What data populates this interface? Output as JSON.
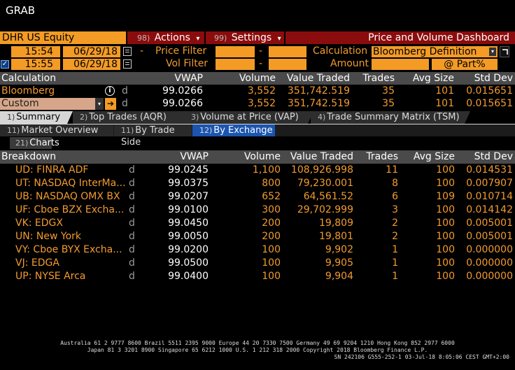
{
  "window_title": "GRAB",
  "security": "DHR US Equity",
  "menu": {
    "actions": {
      "num": "98)",
      "label": "Actions",
      "arrow": "▾"
    },
    "settings": {
      "num": "99)",
      "label": "Settings",
      "arrow": "▾"
    },
    "dashboard_title": "Price and Volume Dashboard"
  },
  "filters": {
    "start_time": "15:54",
    "start_date": "06/29/18",
    "end_time": "15:55",
    "end_date": "06/29/18",
    "dash": "-",
    "price_filter_label": "Price Filter",
    "vol_filter_label": "Vol Filter",
    "calculation_label": "Calculation",
    "calculation_value": "Bloomberg Definition",
    "amount_label": "Amount",
    "part_label": "@ Part%"
  },
  "calc_table": {
    "headers": [
      "Calculation",
      "VWAP",
      "Volume",
      "Value Traded",
      "Trades",
      "Avg Size",
      "Std Dev"
    ],
    "rows": [
      {
        "name": "Bloomberg",
        "info": "i",
        "flag": "d",
        "vwap": "99.0266",
        "volume": "3,552",
        "value": "351,742.519",
        "trades": "35",
        "avg": "101",
        "std": "0.015651"
      },
      {
        "name": "Custom",
        "info": "",
        "flag": "d",
        "vwap": "99.0266",
        "volume": "3,552",
        "value": "351,742.519",
        "trades": "35",
        "avg": "101",
        "std": "0.015651"
      }
    ]
  },
  "tabs": [
    {
      "num": "1)",
      "label": "Summary"
    },
    {
      "num": "2)",
      "label": "Top Trades (AQR)"
    },
    {
      "num": "3)",
      "label": "Volume at Price (VAP)"
    },
    {
      "num": "4)",
      "label": "Trade Summary Matrix (TSM)"
    }
  ],
  "subtabs": [
    {
      "num": "11)",
      "label": "Market Overview"
    },
    {
      "num": "11)",
      "label": "By Trade Side"
    },
    {
      "num": "12)",
      "label": "By Exchange"
    }
  ],
  "charts_button": {
    "num": "21)",
    "label": "Charts"
  },
  "breakdown": {
    "headers": [
      "Breakdown",
      "VWAP",
      "Volume",
      "Value Traded",
      "Trades",
      "Avg Size",
      "Std Dev"
    ],
    "rows": [
      {
        "name": "UD: FINRA ADF",
        "flag": "d",
        "vwap": "99.0245",
        "volume": "1,100",
        "value": "108,926.998",
        "trades": "11",
        "avg": "100",
        "std": "0.014531"
      },
      {
        "name": "UT: NASDAQ InterMa...",
        "flag": "d",
        "vwap": "99.0375",
        "volume": "800",
        "value": "79,230.001",
        "trades": "8",
        "avg": "100",
        "std": "0.007907"
      },
      {
        "name": "UB: NASDAQ OMX BX",
        "flag": "d",
        "vwap": "99.0207",
        "volume": "652",
        "value": "64,561.52",
        "trades": "6",
        "avg": "109",
        "std": "0.010714"
      },
      {
        "name": "UF: Cboe BZX Excha...",
        "flag": "d",
        "vwap": "99.0100",
        "volume": "300",
        "value": "29,702.999",
        "trades": "3",
        "avg": "100",
        "std": "0.014142"
      },
      {
        "name": "VK: EDGX",
        "flag": "d",
        "vwap": "99.0450",
        "volume": "200",
        "value": "19,809",
        "trades": "2",
        "avg": "100",
        "std": "0.005001"
      },
      {
        "name": "UN: New York",
        "flag": "d",
        "vwap": "99.0050",
        "volume": "200",
        "value": "19,801",
        "trades": "2",
        "avg": "100",
        "std": "0.005001"
      },
      {
        "name": "VY: Cboe BYX Excha...",
        "flag": "d",
        "vwap": "99.0200",
        "volume": "100",
        "value": "9,902",
        "trades": "1",
        "avg": "100",
        "std": "0.000000"
      },
      {
        "name": "VJ: EDGA",
        "flag": "d",
        "vwap": "99.0500",
        "volume": "100",
        "value": "9,905",
        "trades": "1",
        "avg": "100",
        "std": "0.000000"
      },
      {
        "name": "UP: NYSE Arca",
        "flag": "d",
        "vwap": "99.0400",
        "volume": "100",
        "value": "9,904",
        "trades": "1",
        "avg": "100",
        "std": "0.000000"
      }
    ]
  },
  "footer": {
    "line1": "Australia 61 2 9777 8600 Brazil 5511 2395 9000 Europe 44 20 7330 7500 Germany 49 69 9204 1210 Hong Kong 852 2977 6000",
    "line2": "Japan 81 3 3201 8900      Singapore 65 6212 1000      U.S. 1 212 318 2000          Copyright 2018 Bloomberg Finance L.P.",
    "line3": "SN 242106 G555-252-1 03-Jul-18  8:05:06 CEST GMT+2:00"
  },
  "colors": {
    "accent": "#f39b25",
    "menu_red": "#8b0c0c",
    "selected_blue": "#1b55b0"
  }
}
